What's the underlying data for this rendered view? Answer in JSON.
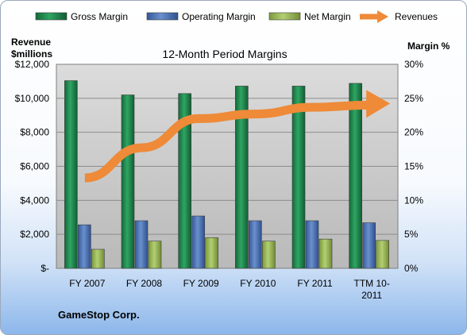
{
  "chart_data": {
    "type": "bar",
    "title": "12-Month Period Margins",
    "y_left_label": [
      "Revenue",
      "$millions"
    ],
    "y_right_label": "Margin %",
    "categories": [
      [
        "FY 2007"
      ],
      [
        "FY 2008"
      ],
      [
        "FY 2009"
      ],
      [
        "FY 2010"
      ],
      [
        "FY 2011"
      ],
      [
        "TTM 10-",
        "2011"
      ]
    ],
    "y_left_ticks": [
      "$-",
      "$2,000",
      "$4,000",
      "$6,000",
      "$8,000",
      "$10,000",
      "$12,000"
    ],
    "y_left_lim": [
      0,
      12000
    ],
    "y_right_ticks": [
      "0%",
      "5%",
      "10%",
      "15%",
      "20%",
      "25%",
      "30%"
    ],
    "y_right_lim": [
      0,
      30
    ],
    "series": [
      {
        "name": "Gross Margin",
        "kind": "bar",
        "axis": "right",
        "color": "#1f8a4f",
        "values": [
          27.6,
          25.5,
          25.7,
          26.8,
          26.8,
          27.2
        ]
      },
      {
        "name": "Operating Margin",
        "kind": "bar",
        "axis": "right",
        "color": "#4a74b4",
        "values": [
          6.4,
          7.0,
          7.7,
          7.0,
          7.0,
          6.7
        ]
      },
      {
        "name": "Net Margin",
        "kind": "bar",
        "axis": "right",
        "color": "#9bbb59",
        "values": [
          2.8,
          4.0,
          4.5,
          4.0,
          4.3,
          4.1
        ]
      },
      {
        "name": "Revenues",
        "kind": "line",
        "axis": "left",
        "color": "#ee8a38",
        "values": [
          5319,
          7094,
          8806,
          9078,
          9474,
          9600
        ]
      }
    ],
    "grid": true,
    "legend_position": "top",
    "company": "GameStop Corp."
  }
}
